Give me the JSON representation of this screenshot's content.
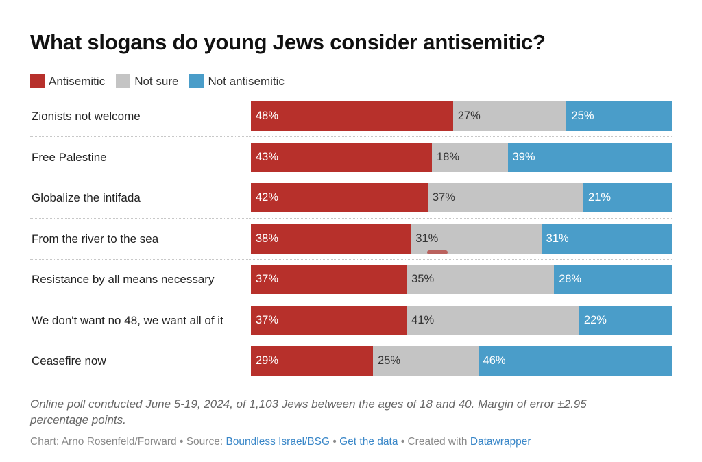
{
  "colors": {
    "antisemitic": "#b7302b",
    "not_sure": "#c4c4c4",
    "not_antisemitic": "#4a9dc9"
  },
  "legend": [
    {
      "label": "Antisemitic",
      "key": "antisemitic"
    },
    {
      "label": "Not sure",
      "key": "not_sure"
    },
    {
      "label": "Not antisemitic",
      "key": "not_antisemitic"
    }
  ],
  "chart_data": {
    "type": "bar",
    "orientation": "horizontal",
    "stacked": true,
    "title": "What slogans do young Jews consider antisemitic?",
    "xlabel": "",
    "ylabel": "",
    "xlim": [
      0,
      100
    ],
    "grid": false,
    "legend_position": "top-left",
    "categories": [
      "Zionists not welcome",
      "Free Palestine",
      "Globalize the intifada",
      "From the river to the sea",
      "Resistance by all means necessary",
      "We don't want no 48, we want all of it",
      "Ceasefire now"
    ],
    "series": [
      {
        "name": "Antisemitic",
        "values": [
          48,
          43,
          42,
          38,
          37,
          37,
          29
        ]
      },
      {
        "name": "Not sure",
        "values": [
          27,
          18,
          37,
          31,
          35,
          41,
          25
        ]
      },
      {
        "name": "Not antisemitic",
        "values": [
          25,
          39,
          21,
          31,
          28,
          22,
          46
        ]
      }
    ],
    "value_suffix": "%"
  },
  "note": "Online poll conducted June 5-19, 2024, of 1,103 Jews between the ages of 18 and 40. Margin of error ±2.95 percentage points.",
  "credits": {
    "chart_prefix": "Chart: Arno Rosenfeld/Forward",
    "sep": " • ",
    "source_prefix": "Source: ",
    "source_link": "Boundless Israel/BSG",
    "data_link": "Get the data",
    "created_prefix": "Created with ",
    "created_link": "Datawrapper"
  }
}
